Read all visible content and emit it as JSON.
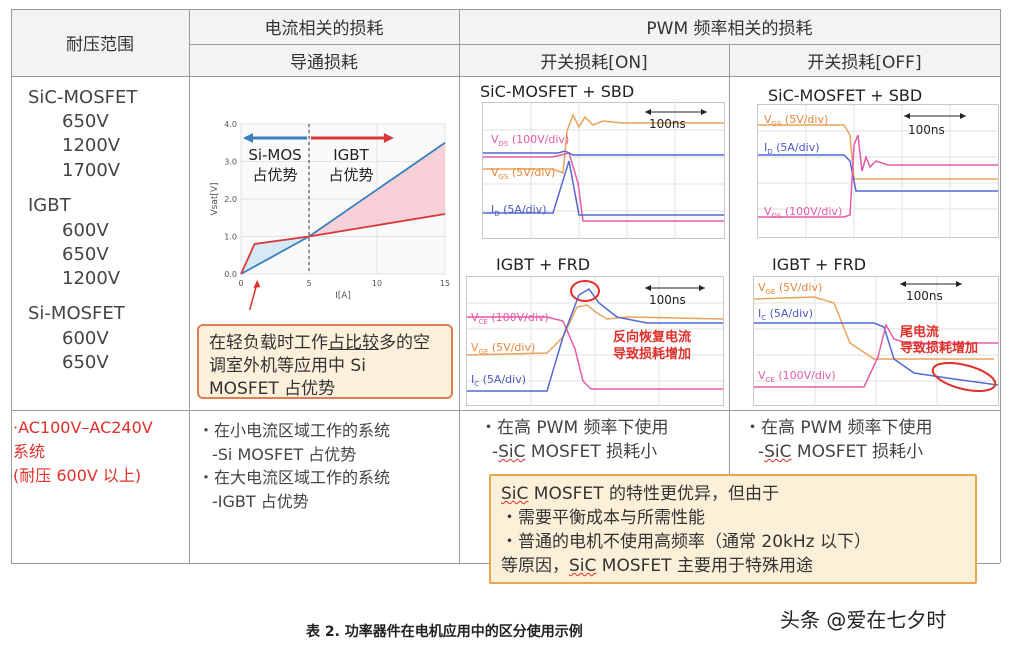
{
  "header": {
    "col1": "耐压范围",
    "current_related": "电流相关的损耗",
    "pwm_related": "PWM 频率相关的损耗",
    "conduction": "导通损耗",
    "switch_on": "开关损耗[ON]",
    "switch_off": "开关损耗[OFF]"
  },
  "devices": {
    "sic_mosfet": "SiC-MOSFET",
    "sic_v1": "650V",
    "sic_v2": "1200V",
    "sic_v3": "1700V",
    "igbt": "IGBT",
    "igbt_v1": "600V",
    "igbt_v2": "650V",
    "igbt_v3": "1200V",
    "si_mosfet": "Si-MOSFET",
    "si_v1": "600V",
    "si_v2": "650V"
  },
  "chart_data": {
    "type": "line",
    "xlabel": "I[A]",
    "ylabel": "Vsat[V]",
    "xlim": [
      0,
      15
    ],
    "ylim": [
      0,
      4.0
    ],
    "x_ticks": [
      "0",
      "5",
      "10",
      "15"
    ],
    "y_ticks": [
      "0.0",
      "1.0",
      "2.0",
      "3.0",
      "4.0"
    ],
    "series": [
      {
        "x": [
          0,
          5,
          15
        ],
        "y": [
          0.0,
          1.0,
          3.5
        ]
      },
      {
        "x": [
          0,
          1,
          5,
          10,
          15
        ],
        "y": [
          0.0,
          0.8,
          1.0,
          1.3,
          1.6
        ]
      }
    ],
    "crossover_x": 5,
    "left_arrow_label": "Si-MOS\n占优势",
    "right_arrow_label": "IGBT\n占优势",
    "colors": {
      "mos": "#3a7fc0",
      "igbt": "#d8373d",
      "fill_pink": "#f7c6cf",
      "fill_blue": "#cde6f4"
    }
  },
  "callout_light_load": {
    "part1": "在轻负载时工作",
    "part2": "占比较",
    "part3": "多的空调室外机等应用中 Si MOSFET 占优势"
  },
  "scopes": {
    "on_top_title": "SiC-MOSFET + SBD",
    "off_top_title": "SiC-MOSFET + SBD",
    "on_bottom_title": "IGBT + FRD",
    "off_bottom_title": "IGBT + FRD",
    "time_div": "100ns",
    "vds_label": "V",
    "vds_sub": "DS",
    "vds_unit": " (100V/div)",
    "vgs_label": "V",
    "vgs_sub": "GS",
    "vgs_unit": " (5V/div)",
    "id_label": "I",
    "id_sub": "D",
    "id_unit": " (5A/div)",
    "vce_label": "V",
    "vce_sub": "CE",
    "vce_unit": " (100V/div)",
    "vge_label": "V",
    "vge_sub": "GE",
    "vge_unit": " (5V/div)",
    "ic_label": "I",
    "ic_sub": "C",
    "ic_unit": " (5A/div)",
    "note_on": "反向恢复电流\n导致损耗增加",
    "note_off": "尾电流\n导致损耗增加"
  },
  "bottom_row": {
    "range_line1": "·AC100V–AC240V",
    "range_line2": "系统",
    "range_line3": "(耐压 600V 以上)",
    "conduction_1": "・在小电流区域工作的系统",
    "conduction_2": "-Si MOSFET 占优势",
    "conduction_3": "・在大电流区域工作的系统",
    "conduction_4": "-IGBT 占优势",
    "on_1": "・在高 PWM 频率下使用",
    "on_2a": "-",
    "on_2b": "SiC",
    "on_2c": " MOSFET 损耗小",
    "off_1": "・在高 PWM 频率下使用",
    "off_2a": "-",
    "off_2b": "SiC",
    "off_2c": " MOSFET 损耗小"
  },
  "summary_box": {
    "l1a": "SiC",
    "l1b": " MOSFET 的特性更优异，但由于",
    "l2": "・需要平衡成本与所需性能",
    "l3": "・普通的电机不使用高频率（通常 20kHz 以下）",
    "l4a": "等原因，",
    "l4b": "SiC",
    "l4c": " MOSFET 主要用于特殊用途"
  },
  "caption": "表 2. 功率器件在电机应用中的区分使用示例",
  "watermark": "头条 @爱在七夕时"
}
